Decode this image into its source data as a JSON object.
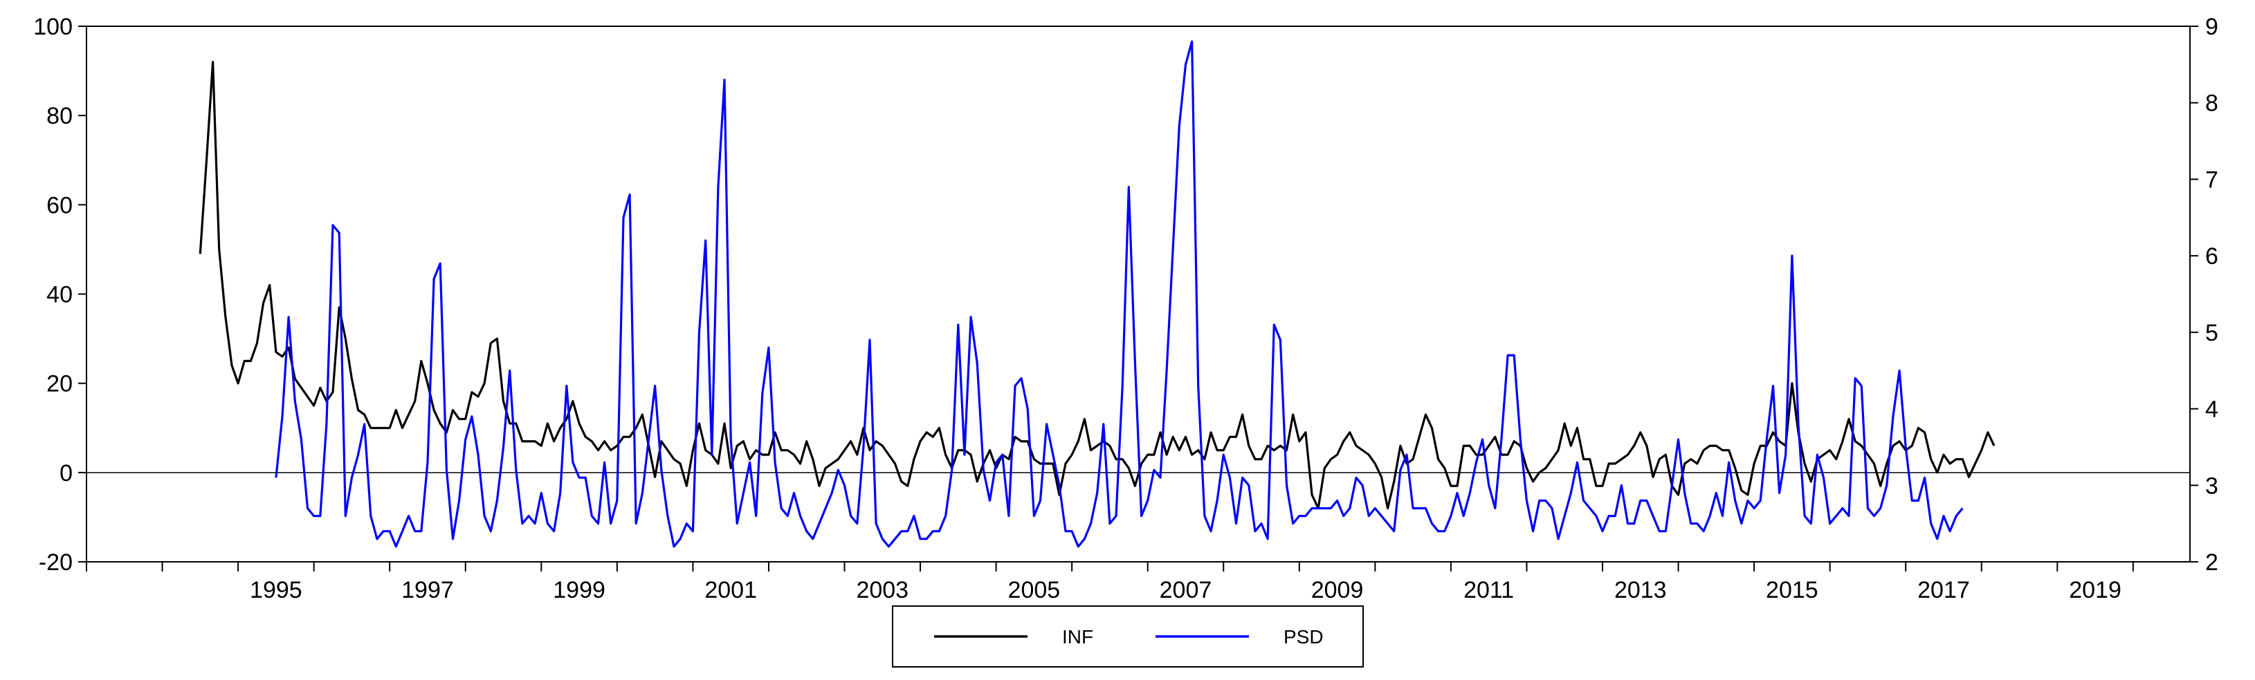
{
  "chart_data": {
    "type": "line",
    "title": "",
    "xlabel": "",
    "ylabel": "",
    "x_tick_labels": [
      "1995",
      "1997",
      "1999",
      "2001",
      "2003",
      "2005",
      "2007",
      "2009",
      "2011",
      "2013",
      "2015",
      "2017",
      "2019"
    ],
    "x_range": [
      1993.0,
      2020.75
    ],
    "y_left": {
      "range": [
        -20,
        100
      ],
      "ticks": [
        "-20",
        "0",
        "20",
        "40",
        "60",
        "80",
        "100"
      ]
    },
    "y_right": {
      "range": [
        2,
        9
      ],
      "ticks": [
        "2",
        "3",
        "4",
        "5",
        "6",
        "7",
        "8",
        "9"
      ]
    },
    "grid": false,
    "zero_line": true,
    "legend_position": "bottom-center",
    "series": [
      {
        "name": "INF",
        "axis": "left",
        "color": "#000000",
        "start_year": 1994.5,
        "values": [
          49,
          70,
          92,
          50,
          35,
          24,
          20,
          25,
          25,
          29,
          38,
          42,
          27,
          26,
          28,
          21,
          19,
          17,
          15,
          19,
          16,
          18,
          37,
          30,
          21,
          14,
          13,
          10,
          10,
          10,
          10,
          14,
          10,
          13,
          16,
          25,
          20,
          14,
          11,
          9,
          14,
          12,
          12,
          18,
          17,
          20,
          29,
          30,
          16,
          11,
          11,
          7,
          7,
          7,
          6,
          11,
          7,
          10,
          12,
          16,
          11,
          8,
          7,
          5,
          7,
          5,
          6,
          8,
          8,
          10,
          13,
          6,
          -1,
          7,
          5,
          3,
          2,
          -3,
          5,
          11,
          5,
          4,
          2,
          11,
          1,
          6,
          7,
          3,
          5,
          4,
          4,
          9,
          5,
          5,
          4,
          2,
          7,
          3,
          -3,
          1,
          2,
          3,
          5,
          7,
          4,
          10,
          5,
          7,
          6,
          4,
          2,
          -2,
          -3,
          3,
          7,
          9,
          8,
          10,
          4,
          1,
          5,
          5,
          4,
          -2,
          2,
          5,
          1,
          4,
          3,
          8,
          7,
          7,
          3,
          2,
          2,
          2,
          -5,
          2,
          4,
          7,
          12,
          5,
          6,
          7,
          6,
          3,
          3,
          1,
          -3,
          2,
          4,
          4,
          9,
          4,
          8,
          5,
          8,
          4,
          5,
          3,
          9,
          5,
          5,
          8,
          8,
          13,
          6,
          3,
          3,
          6,
          5,
          6,
          5,
          13,
          7,
          9,
          -5,
          -8,
          1,
          3,
          4,
          7,
          9,
          6,
          5,
          4,
          2,
          -1,
          -8,
          -2,
          6,
          2,
          3,
          8,
          13,
          10,
          3,
          1,
          -3,
          -3,
          6,
          6,
          4,
          4,
          6,
          8,
          4,
          4,
          7,
          6,
          1,
          -2,
          0,
          1,
          3,
          5,
          11,
          6,
          10,
          3,
          3,
          -3,
          -3,
          2,
          2,
          3,
          4,
          6,
          9,
          6,
          -1,
          3,
          4,
          -3,
          -5,
          2,
          3,
          2,
          5,
          6,
          6,
          5,
          5,
          1,
          -4,
          -5,
          2,
          6,
          6,
          9,
          7,
          6,
          20,
          9,
          2,
          -2,
          3,
          4,
          5,
          3,
          7,
          12,
          7,
          6,
          4,
          2,
          -3,
          2,
          6,
          7,
          5,
          6,
          10,
          9,
          3,
          0,
          4,
          2,
          3,
          3,
          -1,
          2,
          5,
          9,
          6
        ]
      },
      {
        "name": "PSD",
        "axis": "right",
        "color": "#0000ff",
        "start_year": 1995.5,
        "values": [
          3.1,
          3.9,
          5.2,
          4.1,
          3.6,
          2.7,
          2.6,
          2.6,
          3.8,
          6.4,
          6.3,
          2.6,
          3.1,
          3.4,
          3.8,
          2.6,
          2.3,
          2.4,
          2.4,
          2.2,
          2.4,
          2.6,
          2.4,
          2.4,
          3.3,
          5.7,
          5.9,
          3.2,
          2.3,
          2.8,
          3.6,
          3.9,
          3.4,
          2.6,
          2.4,
          2.8,
          3.5,
          4.5,
          3.2,
          2.5,
          2.6,
          2.5,
          2.9,
          2.5,
          2.4,
          2.9,
          4.3,
          3.3,
          3.1,
          3.1,
          2.6,
          2.5,
          3.3,
          2.5,
          2.8,
          6.5,
          6.8,
          2.5,
          2.9,
          3.6,
          4.3,
          3.2,
          2.6,
          2.2,
          2.3,
          2.5,
          2.4,
          5.0,
          6.2,
          3.4,
          6.9,
          8.3,
          3.6,
          2.5,
          2.9,
          3.3,
          2.6,
          4.2,
          4.8,
          3.3,
          2.7,
          2.6,
          2.9,
          2.6,
          2.4,
          2.3,
          2.5,
          2.7,
          2.9,
          3.2,
          3.0,
          2.6,
          2.5,
          3.5,
          4.9,
          2.5,
          2.3,
          2.2,
          2.3,
          2.4,
          2.4,
          2.6,
          2.3,
          2.3,
          2.4,
          2.4,
          2.6,
          3.2,
          5.1,
          3.4,
          5.2,
          4.6,
          3.2,
          2.8,
          3.3,
          3.4,
          2.6,
          4.3,
          4.4,
          4.0,
          2.6,
          2.8,
          3.8,
          3.4,
          3.0,
          2.4,
          2.4,
          2.2,
          2.3,
          2.5,
          2.9,
          3.8,
          2.5,
          2.6,
          4.3,
          6.9,
          4.6,
          2.6,
          2.8,
          3.2,
          3.1,
          4.5,
          6.1,
          7.7,
          8.5,
          8.8,
          4.3,
          2.6,
          2.4,
          2.8,
          3.4,
          3.1,
          2.5,
          3.1,
          3.0,
          2.4,
          2.5,
          2.3,
          5.1,
          4.9,
          3.0,
          2.5,
          2.6,
          2.6,
          2.7,
          2.7,
          2.7,
          2.7,
          2.8,
          2.6,
          2.7,
          3.1,
          3.0,
          2.6,
          2.7,
          2.6,
          2.5,
          2.4,
          3.2,
          3.4,
          2.7,
          2.7,
          2.7,
          2.5,
          2.4,
          2.4,
          2.6,
          2.9,
          2.6,
          2.9,
          3.3,
          3.6,
          3.0,
          2.7,
          3.6,
          4.7,
          4.7,
          3.6,
          2.8,
          2.4,
          2.8,
          2.8,
          2.7,
          2.3,
          2.6,
          2.9,
          3.3,
          2.8,
          2.7,
          2.6,
          2.4,
          2.6,
          2.6,
          3.0,
          2.5,
          2.5,
          2.8,
          2.8,
          2.6,
          2.4,
          2.4,
          3.0,
          3.6,
          2.9,
          2.5,
          2.5,
          2.4,
          2.6,
          2.9,
          2.6,
          3.3,
          2.8,
          2.5,
          2.8,
          2.7,
          2.8,
          3.6,
          4.3,
          2.9,
          3.4,
          6.0,
          3.8,
          2.6,
          2.5,
          3.4,
          3.1,
          2.5,
          2.6,
          2.7,
          2.6,
          4.4,
          4.3,
          2.7,
          2.6,
          2.7,
          3.0,
          3.9,
          4.5,
          3.5,
          2.8,
          2.8,
          3.1,
          2.5,
          2.3,
          2.6,
          2.4,
          2.6,
          2.7
        ]
      }
    ]
  }
}
